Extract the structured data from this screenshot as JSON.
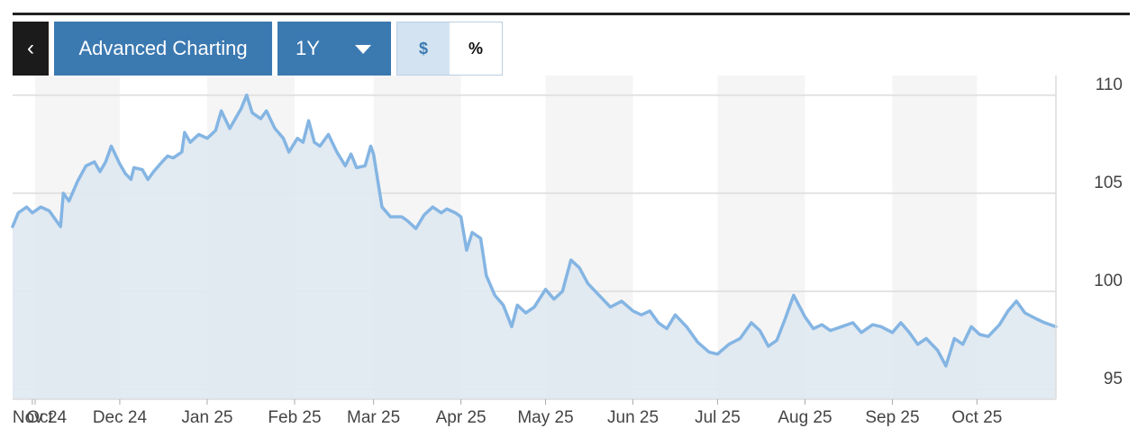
{
  "toolbar": {
    "back_label": "‹",
    "advanced_label": "Advanced Charting",
    "period_label": "1Y",
    "currency_label": "$",
    "percent_label": "%"
  },
  "colors": {
    "line": "#84b5e3",
    "fill": "#dfe8f1",
    "band": "#f5f5f5",
    "grid": "#dcdcdc",
    "button": "#3b79b1"
  },
  "chart_data": {
    "type": "area",
    "title": "",
    "xlabel": "",
    "ylabel": "",
    "ylim": [
      94.5,
      111
    ],
    "y_ticks": [
      95,
      100,
      105,
      110
    ],
    "grid": true,
    "x_range": [
      "2024-10-24",
      "2025-10-29"
    ],
    "x_ticks": [
      {
        "date": "2024-10-31",
        "label": "Oct"
      },
      {
        "date": "2024-11-01",
        "label": "Nov 24"
      },
      {
        "date": "2024-12-01",
        "label": "Dec 24"
      },
      {
        "date": "2025-01-01",
        "label": "Jan 25"
      },
      {
        "date": "2025-02-01",
        "label": "Feb 25"
      },
      {
        "date": "2025-03-01",
        "label": "Mar 25"
      },
      {
        "date": "2025-04-01",
        "label": "Apr 25"
      },
      {
        "date": "2025-05-01",
        "label": "May 25"
      },
      {
        "date": "2025-06-01",
        "label": "Jun 25"
      },
      {
        "date": "2025-07-01",
        "label": "Jul 25"
      },
      {
        "date": "2025-08-01",
        "label": "Aug 25"
      },
      {
        "date": "2025-09-01",
        "label": "Sep 25"
      },
      {
        "date": "2025-10-01",
        "label": "Oct 25"
      }
    ],
    "series": [
      {
        "points": [
          [
            "2024-10-24",
            103.3
          ],
          [
            "2024-10-26",
            104.0
          ],
          [
            "2024-10-29",
            104.3
          ],
          [
            "2024-10-31",
            104.0
          ],
          [
            "2024-11-03",
            104.3
          ],
          [
            "2024-11-06",
            104.1
          ],
          [
            "2024-11-08",
            103.7
          ],
          [
            "2024-11-10",
            103.3
          ],
          [
            "2024-11-11",
            105.0
          ],
          [
            "2024-11-13",
            104.6
          ],
          [
            "2024-11-16",
            105.6
          ],
          [
            "2024-11-19",
            106.4
          ],
          [
            "2024-11-22",
            106.6
          ],
          [
            "2024-11-24",
            106.1
          ],
          [
            "2024-11-26",
            106.6
          ],
          [
            "2024-11-28",
            107.4
          ],
          [
            "2024-12-01",
            106.5
          ],
          [
            "2024-12-03",
            106.0
          ],
          [
            "2024-12-05",
            105.7
          ],
          [
            "2024-12-06",
            106.3
          ],
          [
            "2024-12-09",
            106.2
          ],
          [
            "2024-12-11",
            105.7
          ],
          [
            "2024-12-13",
            106.1
          ],
          [
            "2024-12-16",
            106.6
          ],
          [
            "2024-12-18",
            106.9
          ],
          [
            "2024-12-20",
            106.8
          ],
          [
            "2024-12-23",
            107.1
          ],
          [
            "2024-12-24",
            108.1
          ],
          [
            "2024-12-26",
            107.6
          ],
          [
            "2024-12-29",
            108.0
          ],
          [
            "2025-01-01",
            107.8
          ],
          [
            "2025-01-04",
            108.2
          ],
          [
            "2025-01-06",
            109.2
          ],
          [
            "2025-01-09",
            108.3
          ],
          [
            "2025-01-11",
            108.8
          ],
          [
            "2025-01-13",
            109.3
          ],
          [
            "2025-01-15",
            110.0
          ],
          [
            "2025-01-17",
            109.1
          ],
          [
            "2025-01-20",
            108.8
          ],
          [
            "2025-01-22",
            109.2
          ],
          [
            "2025-01-25",
            108.3
          ],
          [
            "2025-01-28",
            107.8
          ],
          [
            "2025-01-30",
            107.1
          ],
          [
            "2025-02-02",
            107.8
          ],
          [
            "2025-02-04",
            107.6
          ],
          [
            "2025-02-06",
            108.7
          ],
          [
            "2025-02-08",
            107.6
          ],
          [
            "2025-02-10",
            107.4
          ],
          [
            "2025-02-13",
            108.0
          ],
          [
            "2025-02-16",
            107.1
          ],
          [
            "2025-02-19",
            106.4
          ],
          [
            "2025-02-21",
            107.0
          ],
          [
            "2025-02-23",
            106.3
          ],
          [
            "2025-02-26",
            106.4
          ],
          [
            "2025-02-28",
            107.4
          ],
          [
            "2025-03-01",
            107.0
          ],
          [
            "2025-03-04",
            104.3
          ],
          [
            "2025-03-07",
            103.8
          ],
          [
            "2025-03-11",
            103.8
          ],
          [
            "2025-03-13",
            103.6
          ],
          [
            "2025-03-16",
            103.2
          ],
          [
            "2025-03-19",
            103.9
          ],
          [
            "2025-03-22",
            104.3
          ],
          [
            "2025-03-25",
            104.0
          ],
          [
            "2025-03-27",
            104.2
          ],
          [
            "2025-03-30",
            104.0
          ],
          [
            "2025-04-01",
            103.8
          ],
          [
            "2025-04-03",
            102.1
          ],
          [
            "2025-04-05",
            103.0
          ],
          [
            "2025-04-08",
            102.7
          ],
          [
            "2025-04-10",
            100.8
          ],
          [
            "2025-04-13",
            99.8
          ],
          [
            "2025-04-16",
            99.3
          ],
          [
            "2025-04-19",
            98.2
          ],
          [
            "2025-04-21",
            99.3
          ],
          [
            "2025-04-24",
            98.9
          ],
          [
            "2025-04-27",
            99.2
          ],
          [
            "2025-05-01",
            100.1
          ],
          [
            "2025-05-04",
            99.6
          ],
          [
            "2025-05-07",
            100.0
          ],
          [
            "2025-05-10",
            101.6
          ],
          [
            "2025-05-13",
            101.2
          ],
          [
            "2025-05-16",
            100.4
          ],
          [
            "2025-05-20",
            99.8
          ],
          [
            "2025-05-24",
            99.2
          ],
          [
            "2025-05-28",
            99.5
          ],
          [
            "2025-06-01",
            99.0
          ],
          [
            "2025-06-04",
            98.8
          ],
          [
            "2025-06-07",
            99.0
          ],
          [
            "2025-06-10",
            98.4
          ],
          [
            "2025-06-13",
            98.1
          ],
          [
            "2025-06-16",
            98.8
          ],
          [
            "2025-06-20",
            98.2
          ],
          [
            "2025-06-24",
            97.4
          ],
          [
            "2025-06-28",
            96.9
          ],
          [
            "2025-07-01",
            96.8
          ],
          [
            "2025-07-05",
            97.3
          ],
          [
            "2025-07-09",
            97.6
          ],
          [
            "2025-07-13",
            98.4
          ],
          [
            "2025-07-16",
            98.0
          ],
          [
            "2025-07-19",
            97.2
          ],
          [
            "2025-07-22",
            97.5
          ],
          [
            "2025-07-25",
            98.6
          ],
          [
            "2025-07-28",
            99.8
          ],
          [
            "2025-08-01",
            98.7
          ],
          [
            "2025-08-04",
            98.1
          ],
          [
            "2025-08-07",
            98.3
          ],
          [
            "2025-08-10",
            98.0
          ],
          [
            "2025-08-14",
            98.2
          ],
          [
            "2025-08-18",
            98.4
          ],
          [
            "2025-08-21",
            97.9
          ],
          [
            "2025-08-25",
            98.3
          ],
          [
            "2025-08-28",
            98.2
          ],
          [
            "2025-09-01",
            97.9
          ],
          [
            "2025-09-04",
            98.4
          ],
          [
            "2025-09-07",
            97.9
          ],
          [
            "2025-09-10",
            97.3
          ],
          [
            "2025-09-13",
            97.6
          ],
          [
            "2025-09-17",
            97.0
          ],
          [
            "2025-09-20",
            96.2
          ],
          [
            "2025-09-23",
            97.6
          ],
          [
            "2025-09-26",
            97.3
          ],
          [
            "2025-09-29",
            98.2
          ],
          [
            "2025-10-02",
            97.8
          ],
          [
            "2025-10-05",
            97.7
          ],
          [
            "2025-10-09",
            98.3
          ],
          [
            "2025-10-12",
            99.0
          ],
          [
            "2025-10-15",
            99.5
          ],
          [
            "2025-10-18",
            98.9
          ],
          [
            "2025-10-22",
            98.6
          ],
          [
            "2025-10-25",
            98.4
          ],
          [
            "2025-10-29",
            98.2
          ]
        ]
      }
    ]
  }
}
